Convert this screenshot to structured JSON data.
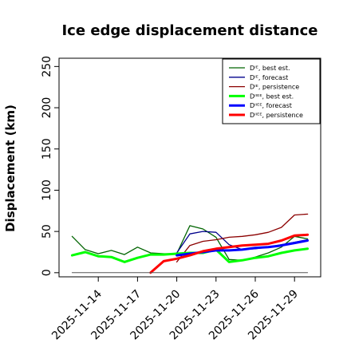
{
  "chart_data": {
    "type": "line",
    "title": "Ice edge displacement distance",
    "xlabel": "",
    "ylabel": "Displacement (km)",
    "ylim": [
      -5,
      260
    ],
    "yticks": [
      0,
      50,
      100,
      150,
      200,
      250
    ],
    "x": [
      "2025-11-12",
      "2025-11-13",
      "2025-11-14",
      "2025-11-15",
      "2025-11-16",
      "2025-11-17",
      "2025-11-18",
      "2025-11-19",
      "2025-11-20",
      "2025-11-21",
      "2025-11-22",
      "2025-11-23",
      "2025-11-24",
      "2025-11-25",
      "2025-11-26",
      "2025-11-27",
      "2025-11-28",
      "2025-11-29",
      "2025-11-30",
      "2025-12-01"
    ],
    "xlim": [
      "2025-11-11",
      "2025-12-01"
    ],
    "xtick_labels": [
      {
        "label": "2025-11-14",
        "color": "#000000"
      },
      {
        "label": "2025-11-17",
        "color": "#000000"
      },
      {
        "label": "2025-11-20",
        "color": "#228b22"
      },
      {
        "label": "2025-11-23",
        "color": "#000000"
      },
      {
        "label": "2025-11-26",
        "color": "#000000"
      },
      {
        "label": "2025-11-29",
        "color": "#000000"
      }
    ],
    "grid": false,
    "legend_position": "top-right",
    "legend": [
      {
        "label": "Dᴵᴱ, best est.",
        "color": "#006400",
        "width": 1.3
      },
      {
        "label": "Dᴵᴱ, forecast",
        "color": "#00008b",
        "width": 1.3
      },
      {
        "label": "Dᴵᴱ, persistence",
        "color": "#8b0000",
        "width": 1.3
      },
      {
        "label": "Dᴵᴵᴱᴱ, best est.",
        "color": "#00ff00",
        "width": 3
      },
      {
        "label": "Dᴵᴵᴱᴱ, forecast",
        "color": "#0000ff",
        "width": 3
      },
      {
        "label": "Dᴵᴵᴱᴱ, persistence",
        "color": "#ff0000",
        "width": 3
      }
    ],
    "series": [
      {
        "name": "Dᴵᴱ, best est.",
        "color": "#006400",
        "width": 1.3,
        "x": [
          "2025-11-12",
          "2025-11-13",
          "2025-11-14",
          "2025-11-15",
          "2025-11-16",
          "2025-11-17",
          "2025-11-18",
          "2025-11-19",
          "2025-11-20",
          "2025-11-21",
          "2025-11-22",
          "2025-11-23",
          "2025-11-24",
          "2025-11-25",
          "2025-11-26",
          "2025-11-27",
          "2025-11-28",
          "2025-11-29",
          "2025-11-30"
        ],
        "values": [
          44,
          28,
          23,
          27,
          22,
          31,
          24,
          23,
          23,
          57,
          53,
          43,
          16,
          15,
          19,
          24,
          31,
          44,
          41
        ]
      },
      {
        "name": "Dᴵᴱ, forecast",
        "color": "#00008b",
        "width": 1.3,
        "x": [
          "2025-11-20",
          "2025-11-21",
          "2025-11-22",
          "2025-11-23",
          "2025-11-24",
          "2025-11-25",
          "2025-11-26",
          "2025-11-27",
          "2025-11-28",
          "2025-11-29",
          "2025-11-30"
        ],
        "values": [
          24,
          47,
          50,
          49,
          34,
          28,
          29,
          31,
          34,
          37,
          40
        ]
      },
      {
        "name": "Dᴵᴱ, persistence",
        "color": "#8b0000",
        "width": 1.3,
        "x": [
          "2025-11-20",
          "2025-11-21",
          "2025-11-22",
          "2025-11-23",
          "2025-11-24",
          "2025-11-25",
          "2025-11-26",
          "2025-11-27",
          "2025-11-28",
          "2025-11-29",
          "2025-11-30"
        ],
        "values": [
          13,
          33,
          38,
          40,
          43,
          44,
          46,
          49,
          55,
          70,
          71
        ]
      },
      {
        "name": "Dᴵᴵᴱᴱ, best est.",
        "color": "#00ff00",
        "width": 3,
        "x": [
          "2025-11-12",
          "2025-11-13",
          "2025-11-14",
          "2025-11-15",
          "2025-11-16",
          "2025-11-17",
          "2025-11-18",
          "2025-11-19",
          "2025-11-20",
          "2025-11-21",
          "2025-11-22",
          "2025-11-23",
          "2025-11-24",
          "2025-11-25",
          "2025-11-26",
          "2025-11-27",
          "2025-11-28",
          "2025-11-29",
          "2025-11-30"
        ],
        "values": [
          21,
          25,
          20,
          19,
          13,
          18,
          22,
          22,
          23,
          24,
          24,
          28,
          13,
          15,
          18,
          20,
          24,
          27,
          29
        ]
      },
      {
        "name": "Dᴵᴵᴱᴱ, forecast",
        "color": "#0000ff",
        "width": 3,
        "x": [
          "2025-11-20",
          "2025-11-21",
          "2025-11-22",
          "2025-11-23",
          "2025-11-24",
          "2025-11-25",
          "2025-11-26",
          "2025-11-27",
          "2025-11-28",
          "2025-11-29",
          "2025-11-30"
        ],
        "values": [
          21,
          23,
          25,
          27,
          27,
          28,
          30,
          31,
          33,
          36,
          39
        ]
      },
      {
        "name": "Dᴵᴵᴱᴱ, persistence",
        "color": "#ff0000",
        "width": 3,
        "x": [
          "2025-11-18",
          "2025-11-19",
          "2025-11-20",
          "2025-11-21",
          "2025-11-22",
          "2025-11-23",
          "2025-11-24",
          "2025-11-25",
          "2025-11-26",
          "2025-11-27",
          "2025-11-28",
          "2025-11-29",
          "2025-11-30"
        ],
        "values": [
          0,
          14,
          17,
          21,
          26,
          29,
          31,
          33,
          34,
          35,
          39,
          45,
          46
        ]
      },
      {
        "name": "",
        "color": "#555555",
        "width": 1,
        "x": [
          "2025-11-12",
          "2025-11-30"
        ],
        "values": [
          0,
          0
        ]
      }
    ]
  }
}
